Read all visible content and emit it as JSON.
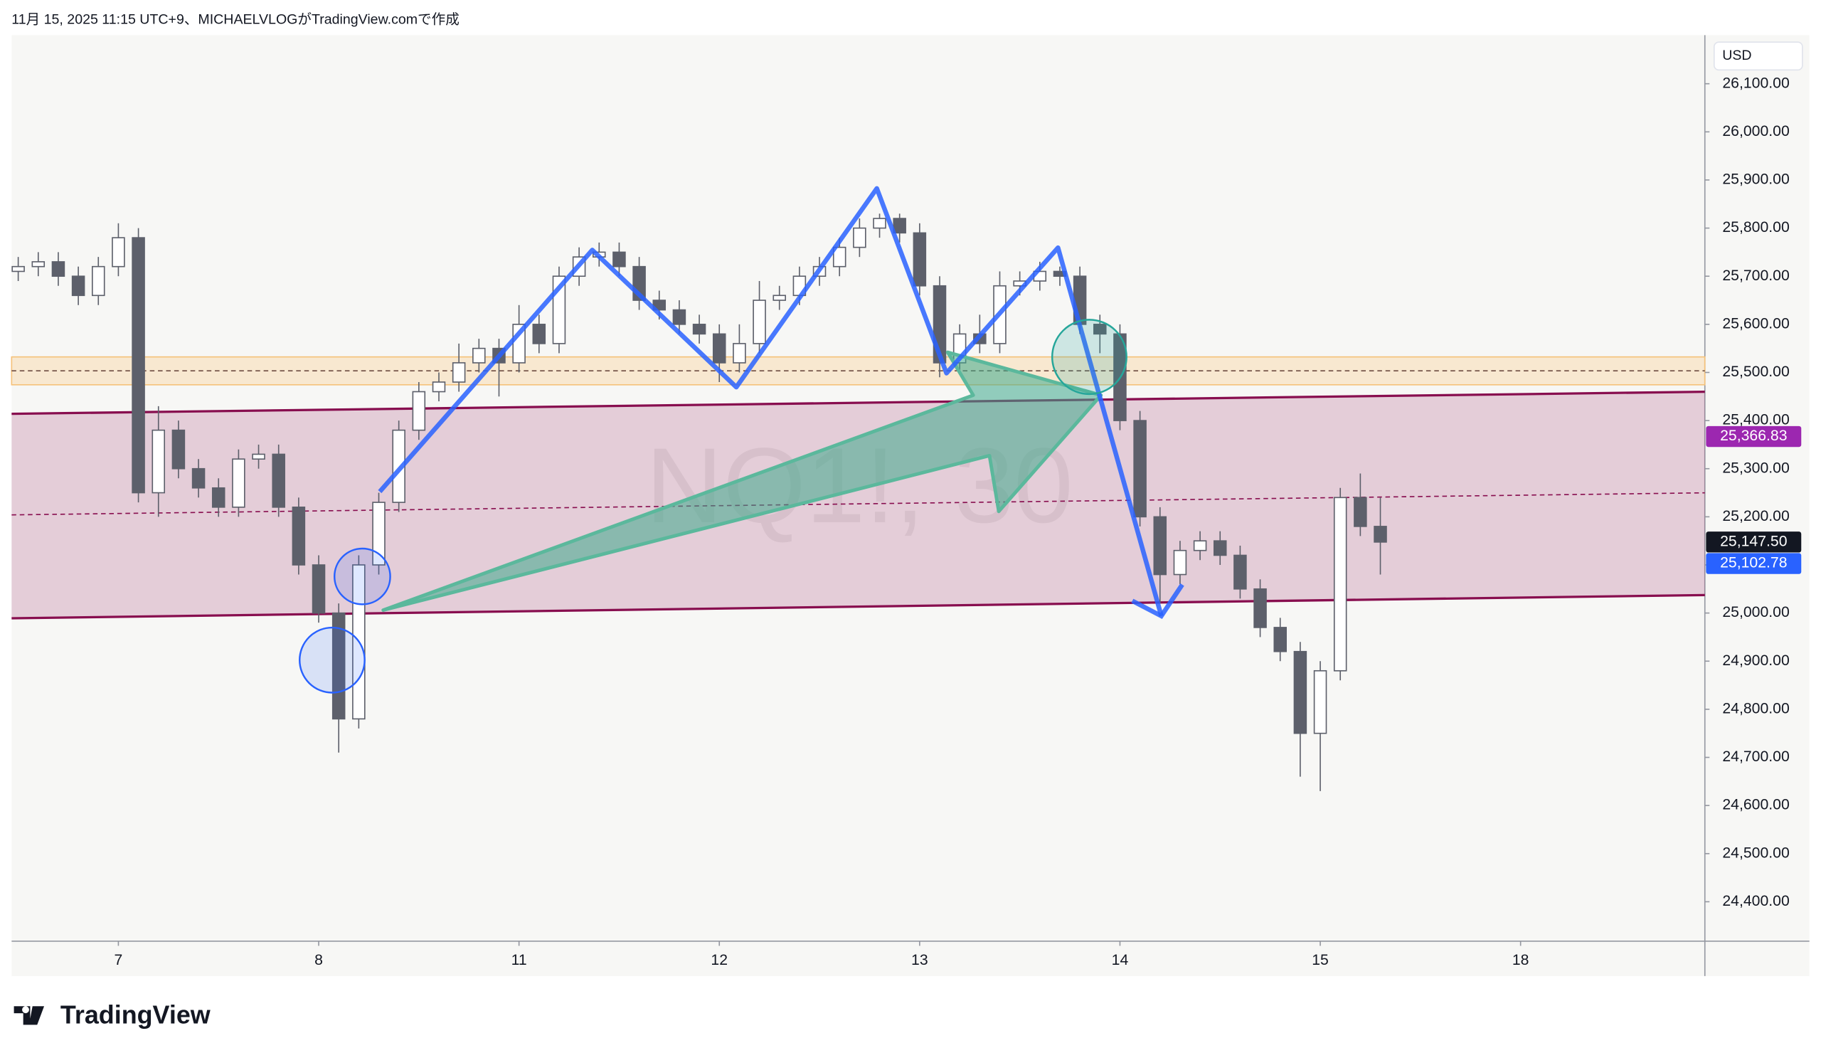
{
  "header": "11月 15, 2025 11:15 UTC+9、MICHAELVLOGがTradingView.comで作成",
  "logo": "TradingView",
  "chart_data": {
    "type": "candlestick",
    "watermark": "NQ1!, 30",
    "currency": "USD",
    "grid": false,
    "up_color": "#ffffff",
    "down_color": "#5d606b",
    "wick_color": "#5d606b",
    "xlim": [
      -0.533,
      7.92
    ],
    "ylim": [
      24318,
      26201
    ],
    "xticks": [
      {
        "value": 0,
        "label": "7"
      },
      {
        "value": 1,
        "label": "8"
      },
      {
        "value": 2,
        "label": "11"
      },
      {
        "value": 3,
        "label": "12"
      },
      {
        "value": 4,
        "label": "13"
      },
      {
        "value": 5,
        "label": "14"
      },
      {
        "value": 6,
        "label": "15"
      },
      {
        "value": 7,
        "label": "18"
      }
    ],
    "yticks": [
      {
        "value": 24400,
        "label": "24,400.00"
      },
      {
        "value": 24500,
        "label": "24,500.00"
      },
      {
        "value": 24600,
        "label": "24,600.00"
      },
      {
        "value": 24700,
        "label": "24,700.00"
      },
      {
        "value": 24800,
        "label": "24,800.00"
      },
      {
        "value": 24900,
        "label": "24,900.00"
      },
      {
        "value": 25000,
        "label": "25,000.00"
      },
      {
        "value": 25100,
        "label": "25,100.00"
      },
      {
        "value": 25200,
        "label": "25,200.00"
      },
      {
        "value": 25300,
        "label": "25,300.00"
      },
      {
        "value": 25400,
        "label": "25,400.00"
      },
      {
        "value": 25500,
        "label": "25,500.00"
      },
      {
        "value": 25600,
        "label": "25,600.00"
      },
      {
        "value": 25700,
        "label": "25,700.00"
      },
      {
        "value": 25800,
        "label": "25,800.00"
      },
      {
        "value": 25900,
        "label": "25,900.00"
      },
      {
        "value": 26000,
        "label": "26,000.00"
      },
      {
        "value": 26100,
        "label": "26,100.00"
      }
    ],
    "price_labels": [
      {
        "value": 25366.83,
        "label": "25,366.83",
        "color": "#9c27b0"
      },
      {
        "value": 25147.5,
        "label": "25,147.50",
        "color": "#131722"
      },
      {
        "value": 25102.78,
        "label": "25,102.78",
        "color": "#2962ff"
      }
    ],
    "x": [
      -0.5,
      -0.4,
      -0.3,
      -0.2,
      -0.1,
      0,
      0.1,
      0.2,
      0.3,
      0.4,
      0.5,
      0.6,
      0.7,
      0.8,
      0.9,
      1,
      1.1,
      1.2,
      1.3,
      1.4,
      1.5,
      1.6,
      1.7,
      1.8,
      1.9,
      2,
      2.1,
      2.2,
      2.3,
      2.4,
      2.5,
      2.6,
      2.7,
      2.8,
      2.9,
      3,
      3.1,
      3.2,
      3.3,
      3.4,
      3.5,
      3.6,
      3.7,
      3.8,
      3.9,
      4,
      4.1,
      4.2,
      4.3,
      4.4,
      4.5,
      4.6,
      4.7,
      4.8,
      4.9,
      5,
      5.1,
      5.2,
      5.3,
      5.4,
      5.5,
      5.6,
      5.7,
      5.8,
      5.9,
      6,
      6.1,
      6.2,
      6.3
    ],
    "open": [
      25710,
      25720,
      25730,
      25700,
      25660,
      25720,
      25780,
      25250,
      25380,
      25300,
      25260,
      25220,
      25320,
      25330,
      25220,
      25100,
      25000,
      24780,
      25100,
      25230,
      25380,
      25460,
      25480,
      25520,
      25550,
      25520,
      25600,
      25560,
      25700,
      25740,
      25750,
      25720,
      25650,
      25630,
      25600,
      25580,
      25520,
      25560,
      25650,
      25660,
      25700,
      25720,
      25760,
      25800,
      25820,
      25790,
      25680,
      25520,
      25580,
      25560,
      25680,
      25690,
      25710,
      25700,
      25600,
      25580,
      25400,
      25200,
      25080,
      25130,
      25150,
      25120,
      25050,
      24970,
      24920,
      24750,
      24880,
      25240,
      25180
    ],
    "high": [
      25740,
      25750,
      25750,
      25720,
      25740,
      25810,
      25800,
      25430,
      25400,
      25320,
      25280,
      25340,
      25350,
      25350,
      25240,
      25120,
      25020,
      25120,
      25250,
      25400,
      25480,
      25500,
      25560,
      25570,
      25570,
      25640,
      25620,
      25720,
      25760,
      25770,
      25770,
      25740,
      25670,
      25650,
      25620,
      25600,
      25600,
      25690,
      25680,
      25720,
      25740,
      25780,
      25820,
      25830,
      25830,
      25810,
      25700,
      25600,
      25620,
      25710,
      25710,
      25730,
      25720,
      25720,
      25620,
      25600,
      25420,
      25220,
      25150,
      25170,
      25170,
      25140,
      25070,
      24990,
      24940,
      24900,
      25260,
      25290,
      25240
    ],
    "low": [
      25690,
      25700,
      25680,
      25640,
      25640,
      25700,
      25230,
      25200,
      25280,
      25240,
      25200,
      25200,
      25300,
      25200,
      25080,
      24980,
      24710,
      24760,
      25080,
      25210,
      25360,
      25440,
      25460,
      25500,
      25450,
      25500,
      25540,
      25540,
      25680,
      25720,
      25700,
      25630,
      25610,
      25580,
      25560,
      25480,
      25500,
      25540,
      25630,
      25640,
      25680,
      25700,
      25740,
      25780,
      25770,
      25660,
      25490,
      25500,
      25540,
      25540,
      25660,
      25670,
      25680,
      25580,
      25540,
      25380,
      25180,
      25020,
      25060,
      25110,
      25100,
      25030,
      24950,
      24900,
      24660,
      24630,
      24860,
      25160,
      25080
    ],
    "close": [
      25720,
      25730,
      25700,
      25660,
      25720,
      25780,
      25250,
      25380,
      25300,
      25260,
      25220,
      25320,
      25330,
      25220,
      25100,
      25000,
      24780,
      25100,
      25230,
      25380,
      25460,
      25480,
      25520,
      25550,
      25520,
      25600,
      25560,
      25700,
      25740,
      25750,
      25720,
      25650,
      25630,
      25600,
      25580,
      25520,
      25560,
      25650,
      25660,
      25700,
      25720,
      25760,
      25800,
      25820,
      25790,
      25680,
      25520,
      25580,
      25560,
      25680,
      25690,
      25710,
      25700,
      25600,
      25580,
      25400,
      25200,
      25080,
      25130,
      25150,
      25120,
      25050,
      24970,
      24920,
      24750,
      24880,
      25240,
      25180,
      25147.5
    ]
  }
}
